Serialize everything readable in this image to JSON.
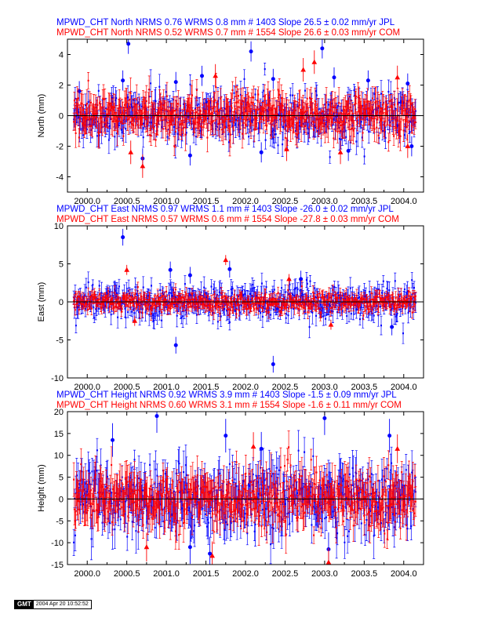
{
  "stamp": {
    "logo_text": "GMT",
    "date_text": "2004 Apr 20 10:52:52"
  },
  "colors": {
    "jpl": "#0000ff",
    "com": "#ff0000",
    "axis": "#000000"
  },
  "chart_data": [
    {
      "type": "scatter",
      "title_jpl": "MPWD_CHT North NRMS 0.76 WRMS  0.8 mm # 1403 Slope   26.5 ±  0.02 mm/yr JPL",
      "title_com": "MPWD_CHT North NRMS 0.52 WRMS  0.7 mm # 1554 Slope   26.6 ±  0.03 mm/yr COM",
      "ylabel": "North (mm)",
      "xlim": [
        1999.75,
        2004.25
      ],
      "ylim": [
        -5,
        5
      ],
      "yticks": [
        "4",
        "2",
        "0",
        "-2",
        "-4"
      ],
      "ytick_values": [
        4,
        2,
        0,
        -2,
        -4
      ],
      "xticks": [
        "2000.0",
        "2000.5",
        "2001.0",
        "2001.5",
        "2002.0",
        "2002.5",
        "2003.0",
        "2003.5",
        "2004.0"
      ],
      "xtick_values": [
        2000.0,
        2000.5,
        2001.0,
        2001.5,
        2002.0,
        2002.5,
        2003.0,
        2003.5,
        2004.0
      ],
      "zero_line": true,
      "series": [
        {
          "name": "JPL",
          "count": 1403,
          "wrms_mm": 0.8,
          "data_start": 1999.83,
          "data_end": 2004.15,
          "points": [
            [
              1999.9,
              1.6
            ],
            [
              2000.45,
              2.3
            ],
            [
              2000.52,
              4.7
            ],
            [
              2001.12,
              2.2
            ],
            [
              2001.45,
              2.6
            ],
            [
              2002.07,
              4.2
            ],
            [
              2002.35,
              2.4
            ],
            [
              2002.97,
              4.4
            ],
            [
              2003.12,
              2.5
            ],
            [
              2003.55,
              2.3
            ],
            [
              2004.05,
              2.1
            ],
            [
              2000.7,
              -2.8
            ],
            [
              2001.3,
              -2.6
            ],
            [
              2002.2,
              -2.4
            ],
            [
              2003.3,
              -2.3
            ],
            [
              2004.1,
              -2.0
            ]
          ],
          "err_mm": 0.6
        },
        {
          "name": "COM",
          "count": 1554,
          "wrms_mm": 0.7,
          "data_start": 1999.83,
          "data_end": 2004.15,
          "points": [
            [
              2000.7,
              -3.3
            ],
            [
              2000.55,
              -2.4
            ],
            [
              2001.62,
              2.6
            ],
            [
              2002.73,
              3.0
            ],
            [
              2002.87,
              3.5
            ],
            [
              2002.52,
              -2.2
            ],
            [
              2003.2,
              -2.4
            ],
            [
              2004.05,
              -2.0
            ],
            [
              2003.92,
              2.5
            ]
          ],
          "err_mm": 0.7
        }
      ]
    },
    {
      "type": "scatter",
      "title_jpl": "MPWD_CHT East NRMS 0.97 WRMS  1.1 mm # 1403 Slope  -26.0 ±  0.02 mm/yr JPL",
      "title_com": "MPWD_CHT East NRMS 0.57 WRMS  0.6 mm # 1554 Slope  -27.8 ±  0.03 mm/yr COM",
      "ylabel": "East (mm)",
      "xlim": [
        1999.75,
        2004.25
      ],
      "ylim": [
        -10,
        10
      ],
      "yticks": [
        "10",
        "5",
        "0",
        "-5",
        "-10"
      ],
      "ytick_values": [
        10,
        5,
        0,
        -5,
        -10
      ],
      "xticks": [
        "2000.0",
        "2000.5",
        "2001.0",
        "2001.5",
        "2002.0",
        "2002.5",
        "2003.0",
        "2003.5",
        "2004.0"
      ],
      "xtick_values": [
        2000.0,
        2000.5,
        2001.0,
        2001.5,
        2002.0,
        2002.5,
        2003.0,
        2003.5,
        2004.0
      ],
      "zero_line": true,
      "series": [
        {
          "name": "JPL",
          "count": 1403,
          "wrms_mm": 1.1,
          "data_start": 1999.83,
          "data_end": 2004.15,
          "points": [
            [
              2000.45,
              8.5
            ],
            [
              2001.05,
              4.2
            ],
            [
              2001.3,
              3.5
            ],
            [
              2001.8,
              4.3
            ],
            [
              2002.35,
              -8.2
            ],
            [
              2001.12,
              -5.7
            ],
            [
              2002.7,
              3.0
            ],
            [
              2003.85,
              -3.3
            ]
          ],
          "err_mm": 1.0
        },
        {
          "name": "COM",
          "count": 1554,
          "wrms_mm": 0.6,
          "data_start": 1999.83,
          "data_end": 2004.15,
          "points": [
            [
              2000.5,
              4.2
            ],
            [
              2001.75,
              5.5
            ],
            [
              2000.6,
              -2.5
            ],
            [
              2002.55,
              3.0
            ],
            [
              2003.08,
              -3.0
            ]
          ],
          "err_mm": 0.6
        }
      ]
    },
    {
      "type": "scatter",
      "title_jpl": "MPWD_CHT Height NRMS 0.92 WRMS  3.9 mm # 1403 Slope   -1.5 ±  0.09 mm/yr JPL",
      "title_com": "MPWD_CHT Height NRMS 0.60 WRMS  3.1 mm # 1554 Slope   -1.6 ±  0.11 mm/yr COM",
      "ylabel": "Height (mm)",
      "xlim": [
        1999.75,
        2004.25
      ],
      "ylim": [
        -15,
        20
      ],
      "yticks": [
        "20",
        "15",
        "10",
        "5",
        "0",
        "-5",
        "-10",
        "-15"
      ],
      "ytick_values": [
        20,
        15,
        10,
        5,
        0,
        -5,
        -10,
        -15
      ],
      "xticks": [
        "2000.0",
        "2000.5",
        "2001.0",
        "2001.5",
        "2002.0",
        "2002.5",
        "2003.0",
        "2003.5",
        "2004.0"
      ],
      "xtick_values": [
        2000.0,
        2000.5,
        2001.0,
        2001.5,
        2002.0,
        2002.5,
        2003.0,
        2003.5,
        2004.0
      ],
      "zero_line": true,
      "series": [
        {
          "name": "JPL",
          "count": 1403,
          "wrms_mm": 3.9,
          "data_start": 1999.83,
          "data_end": 2004.15,
          "points": [
            [
              2000.32,
              13.5
            ],
            [
              2000.88,
              19.0
            ],
            [
              2001.75,
              14.5
            ],
            [
              2002.2,
              11.5
            ],
            [
              2003.0,
              18.5
            ],
            [
              2003.82,
              14.5
            ],
            [
              2001.55,
              -12.5
            ],
            [
              2001.3,
              -11.0
            ],
            [
              2003.05,
              -11.5
            ]
          ],
          "err_mm": 3.5
        },
        {
          "name": "COM",
          "count": 1554,
          "wrms_mm": 3.1,
          "data_start": 1999.83,
          "data_end": 2004.15,
          "points": [
            [
              2003.05,
              -14.5
            ],
            [
              2000.75,
              -11.0
            ],
            [
              2001.58,
              -13.0
            ],
            [
              2002.1,
              12.0
            ],
            [
              2003.92,
              11.5
            ]
          ],
          "err_mm": 3.0
        }
      ]
    }
  ]
}
